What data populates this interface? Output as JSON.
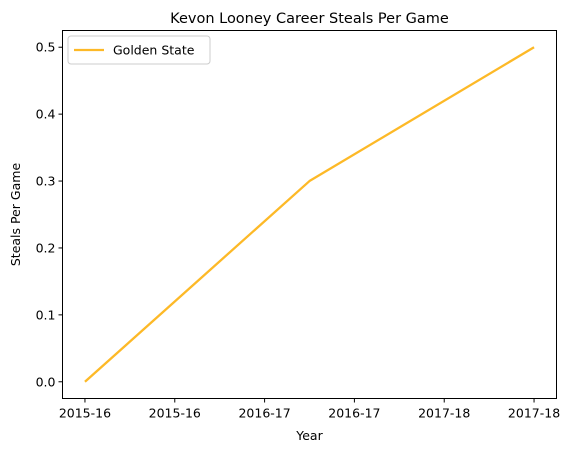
{
  "chart_data": {
    "type": "line",
    "title": "Kevon Looney Career Steals Per Game",
    "xlabel": "Year",
    "ylabel": "Steals Per Game",
    "x_tick_labels": [
      "2015-16",
      "2015-16",
      "2016-17",
      "2016-17",
      "2017-18",
      "2017-18"
    ],
    "y_ticks": [
      0.0,
      0.1,
      0.2,
      0.3,
      0.4,
      0.5
    ],
    "y_tick_labels": [
      "0.0",
      "0.1",
      "0.2",
      "0.3",
      "0.4",
      "0.5"
    ],
    "ylim": [
      -0.025,
      0.525
    ],
    "xlim": [
      -0.1,
      2.1
    ],
    "x": [
      "2015-16",
      "2016-17",
      "2017-18"
    ],
    "series": [
      {
        "name": "Golden State",
        "color": "#FDB927",
        "values": [
          0.0,
          0.3,
          0.5
        ]
      }
    ],
    "legend": {
      "position": "upper-left"
    },
    "grid": false
  }
}
